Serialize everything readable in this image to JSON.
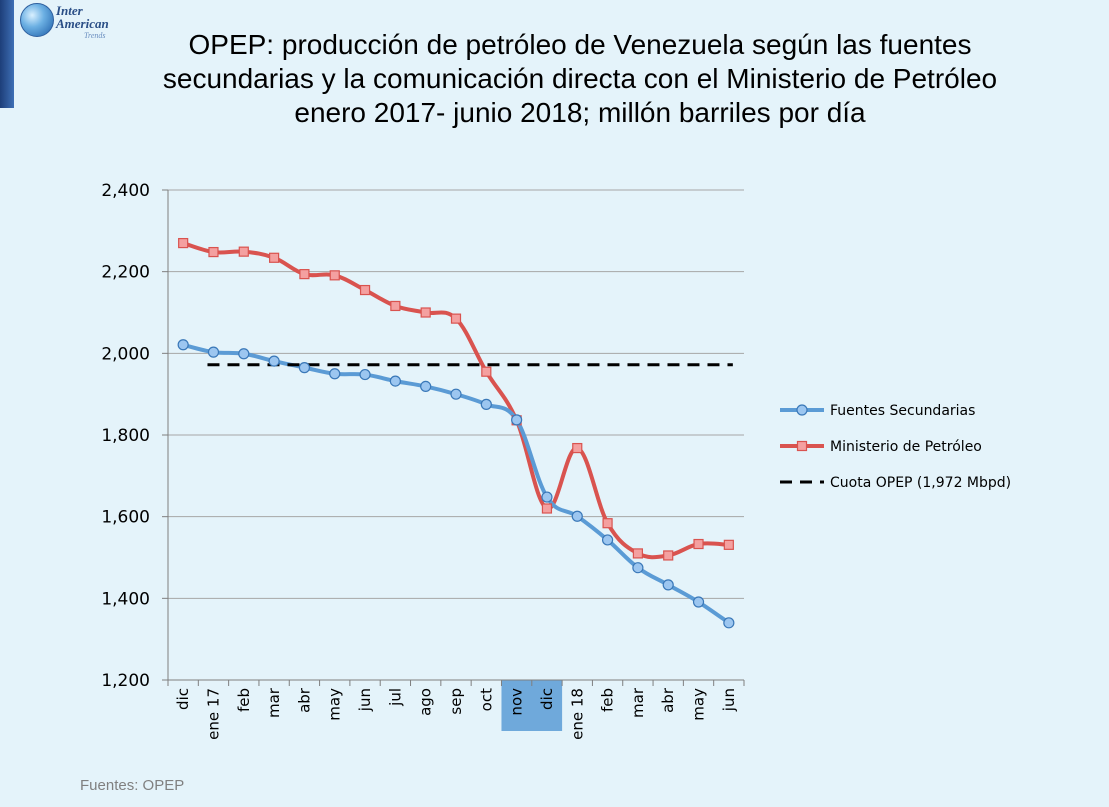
{
  "logo": {
    "line1": "Inter",
    "line2": "American",
    "line3": "Trends"
  },
  "title": {
    "line1": "OPEP: producción de petróleo de Venezuela según las fuentes",
    "line2": "secundarias y la comunicación directa con el Ministerio de Petróleo",
    "line3": "enero 2017- junio 2018; millón barriles por día"
  },
  "source": "Fuentes: OPEP",
  "colors": {
    "secundarias": "#5b9bd5",
    "ministerio": "#d9534f",
    "cuota": "#000000",
    "highlight": "#5b9bd5"
  },
  "chart_data": {
    "type": "line",
    "categories": [
      "dic",
      "ene 17",
      "feb",
      "mar",
      "abr",
      "may",
      "jun",
      "jul",
      "ago",
      "sep",
      "oct",
      "nov",
      "dic",
      "ene 18",
      "feb",
      "mar",
      "abr",
      "may",
      "jun"
    ],
    "highlighted_categories": [
      "nov",
      "dic"
    ],
    "yticks": [
      "1,200",
      "1,400",
      "1,600",
      "1,800",
      "2,000",
      "2,200",
      "2,400"
    ],
    "ylim": [
      1200,
      2400
    ],
    "grid": true,
    "legend_position": "right",
    "series": [
      {
        "name": "Fuentes Secundarias",
        "marker": "circle",
        "values": [
          2021,
          2003,
          1999,
          1981,
          1965,
          1950,
          1948,
          1932,
          1919,
          1900,
          1875,
          1837,
          1648,
          1601,
          1543,
          1475,
          1433,
          1391,
          1340
        ]
      },
      {
        "name": "Ministerio de Petróleo",
        "marker": "square",
        "values": [
          2270,
          2248,
          2249,
          2234,
          2194,
          2191,
          2155,
          2116,
          2100,
          2085,
          1955,
          1836,
          1620,
          1768,
          1584,
          1510,
          1505,
          1533,
          1531
        ]
      },
      {
        "name": "Cuota OPEP (1,972 Mbpd)",
        "marker": "none",
        "dashed": true,
        "x_start": "ene 17",
        "x_end": "jun",
        "values_const": 1972
      }
    ]
  }
}
